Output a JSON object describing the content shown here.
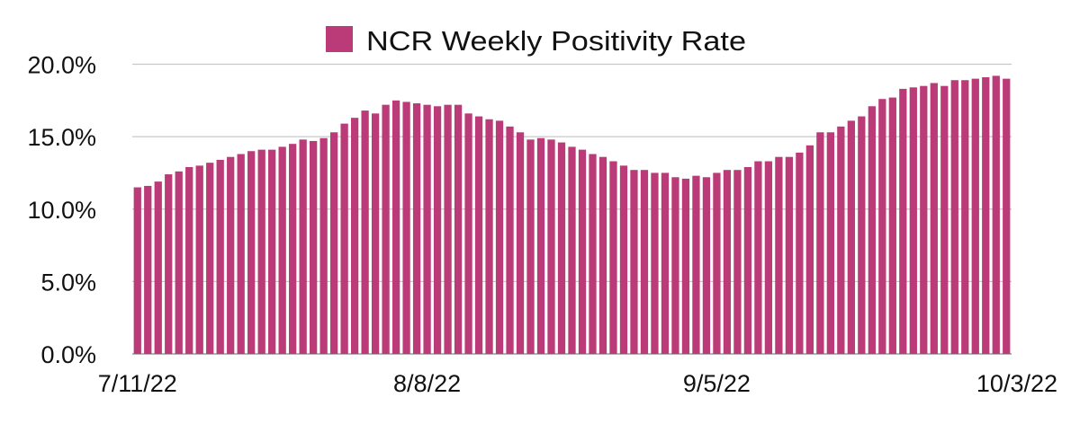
{
  "chart_data": {
    "type": "bar",
    "title": "",
    "xlabel": "",
    "ylabel": "",
    "ylim": [
      0,
      20
    ],
    "y_ticks": [
      "0.0%",
      "5.0%",
      "10.0%",
      "15.0%",
      "20.0%"
    ],
    "y_tick_values": [
      0,
      5,
      10,
      15,
      20
    ],
    "x_tick_labels": [
      "7/11/22",
      "8/8/22",
      "9/5/22",
      "10/3/22"
    ],
    "x_tick_indices": [
      0,
      28,
      56,
      84
    ],
    "grid": "horizontal",
    "legend_position": "top-center",
    "series": [
      {
        "name": "NCR Weekly Positivity Rate",
        "color": "#bb3a78",
        "values": [
          11.5,
          11.6,
          11.9,
          12.4,
          12.6,
          12.9,
          13.0,
          13.2,
          13.4,
          13.6,
          13.8,
          14.0,
          14.1,
          14.1,
          14.3,
          14.5,
          14.8,
          14.7,
          14.9,
          15.3,
          15.9,
          16.3,
          16.8,
          16.6,
          17.2,
          17.5,
          17.4,
          17.3,
          17.2,
          17.1,
          17.2,
          17.2,
          16.6,
          16.4,
          16.2,
          16.1,
          15.7,
          15.3,
          14.8,
          14.9,
          14.8,
          14.6,
          14.3,
          14.1,
          13.8,
          13.6,
          13.3,
          13.0,
          12.7,
          12.7,
          12.5,
          12.5,
          12.2,
          12.1,
          12.3,
          12.2,
          12.5,
          12.7,
          12.7,
          12.9,
          13.3,
          13.3,
          13.6,
          13.6,
          13.9,
          14.4,
          15.3,
          15.3,
          15.7,
          16.1,
          16.4,
          17.1,
          17.6,
          17.7,
          18.3,
          18.4,
          18.5,
          18.7,
          18.5,
          18.9,
          18.9,
          19.0,
          19.1,
          19.2,
          19.0
        ]
      }
    ],
    "categories": [
      "7/11/22",
      "7/12/22",
      "7/13/22",
      "7/14/22",
      "7/15/22",
      "7/16/22",
      "7/17/22",
      "7/18/22",
      "7/19/22",
      "7/20/22",
      "7/21/22",
      "7/22/22",
      "7/23/22",
      "7/24/22",
      "7/25/22",
      "7/26/22",
      "7/27/22",
      "7/28/22",
      "7/29/22",
      "7/30/22",
      "7/31/22",
      "8/1/22",
      "8/2/22",
      "8/3/22",
      "8/4/22",
      "8/5/22",
      "8/6/22",
      "8/7/22",
      "8/8/22",
      "8/9/22",
      "8/10/22",
      "8/11/22",
      "8/12/22",
      "8/13/22",
      "8/14/22",
      "8/15/22",
      "8/16/22",
      "8/17/22",
      "8/18/22",
      "8/19/22",
      "8/20/22",
      "8/21/22",
      "8/22/22",
      "8/23/22",
      "8/24/22",
      "8/25/22",
      "8/26/22",
      "8/27/22",
      "8/28/22",
      "8/29/22",
      "8/30/22",
      "8/31/22",
      "9/1/22",
      "9/2/22",
      "9/3/22",
      "9/4/22",
      "9/5/22",
      "9/6/22",
      "9/7/22",
      "9/8/22",
      "9/9/22",
      "9/10/22",
      "9/11/22",
      "9/12/22",
      "9/13/22",
      "9/14/22",
      "9/15/22",
      "9/16/22",
      "9/17/22",
      "9/18/22",
      "9/19/22",
      "9/20/22",
      "9/21/22",
      "9/22/22",
      "9/23/22",
      "9/24/22",
      "9/25/22",
      "9/26/22",
      "9/27/22",
      "9/28/22",
      "9/29/22",
      "9/30/22",
      "10/1/22",
      "10/2/22",
      "10/3/22"
    ]
  }
}
